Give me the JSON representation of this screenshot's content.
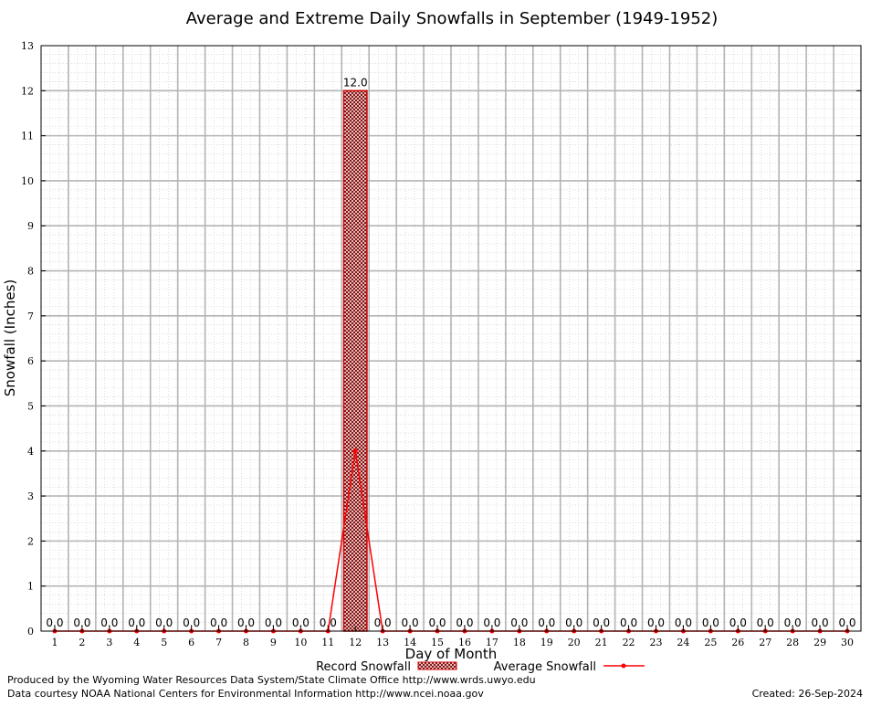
{
  "chart_data": {
    "type": "bar",
    "title": "Average and Extreme Daily Snowfalls in September (1949-1952)",
    "xlabel": "Day of Month",
    "ylabel": "Snowfall (Inches)",
    "ylim": [
      0,
      13
    ],
    "yticks": [
      0,
      1,
      2,
      3,
      4,
      5,
      6,
      7,
      8,
      9,
      10,
      11,
      12,
      13
    ],
    "categories": [
      "1",
      "2",
      "3",
      "4",
      "5",
      "6",
      "7",
      "8",
      "9",
      "10",
      "11",
      "12",
      "13",
      "14",
      "15",
      "16",
      "17",
      "18",
      "19",
      "20",
      "21",
      "22",
      "23",
      "24",
      "25",
      "26",
      "27",
      "28",
      "29",
      "30"
    ],
    "series": [
      {
        "name": "Record Snowfall",
        "kind": "bar",
        "color": "#cc0000",
        "values": [
          0,
          0,
          0,
          0,
          0,
          0,
          0,
          0,
          0,
          0,
          0,
          12.0,
          0,
          0,
          0,
          0,
          0,
          0,
          0,
          0,
          0,
          0,
          0,
          0,
          0,
          0,
          0,
          0,
          0,
          0
        ],
        "labels": [
          "0.0",
          "0.0",
          "0.0",
          "0.0",
          "0.0",
          "0.0",
          "0.0",
          "0.0",
          "0.0",
          "0.0",
          "0.0",
          "12.0",
          "0.0",
          "0.0",
          "0.0",
          "0.0",
          "0.0",
          "0.0",
          "0.0",
          "0.0",
          "0.0",
          "0.0",
          "0.0",
          "0.0",
          "0.0",
          "0.0",
          "0.0",
          "0.0",
          "0.0",
          "0.0"
        ]
      },
      {
        "name": "Average Snowfall",
        "kind": "line",
        "color": "#ff0000",
        "values": [
          0,
          0,
          0,
          0,
          0,
          0,
          0,
          0,
          0,
          0,
          0,
          4.0,
          0,
          0,
          0,
          0,
          0,
          0,
          0,
          0,
          0,
          0,
          0,
          0,
          0,
          0,
          0,
          0,
          0,
          0
        ]
      }
    ],
    "grid": true,
    "legend_position": "bottom-center"
  },
  "footer": {
    "line1": "Produced by the Wyoming Water Resources Data System/State Climate Office http://www.wrds.uwyo.edu",
    "line2": "Data courtesy NOAA National Centers for Environmental Information http://www.ncei.noaa.gov",
    "created": "Created:  26-Sep-2024"
  }
}
